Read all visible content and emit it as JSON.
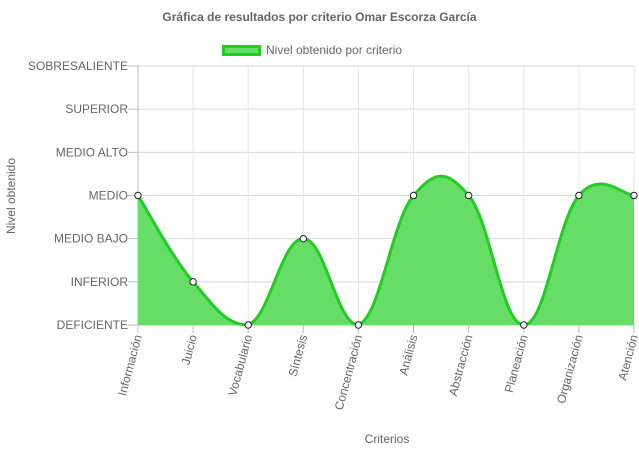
{
  "chart_data": {
    "type": "line",
    "title": "Gráfica de resultados por criterio Omar Escorza García",
    "xlabel": "Criterios",
    "ylabel": "Nivel obtenido",
    "y_levels": [
      "DEFICIENTE",
      "INFERIOR",
      "MEDIO BAJO",
      "MEDIO",
      "MEDIO ALTO",
      "SUPERIOR",
      "SOBRESALIENTE"
    ],
    "categories": [
      "Información",
      "Juicio",
      "Vocabulario",
      "Síntesis",
      "Concentración",
      "Análisis",
      "Abstracción",
      "Planeación",
      "Organización",
      "Atención"
    ],
    "series": [
      {
        "name": "Nivel obtenido por criterio",
        "values": [
          "MEDIO",
          "INFERIOR",
          "DEFICIENTE",
          "MEDIO BAJO",
          "DEFICIENTE",
          "MEDIO",
          "MEDIO",
          "DEFICIENTE",
          "MEDIO",
          "MEDIO"
        ],
        "fill": "#66dd66",
        "stroke": "#22cc22"
      }
    ],
    "legend": "top",
    "grid": true,
    "smooth": true
  }
}
